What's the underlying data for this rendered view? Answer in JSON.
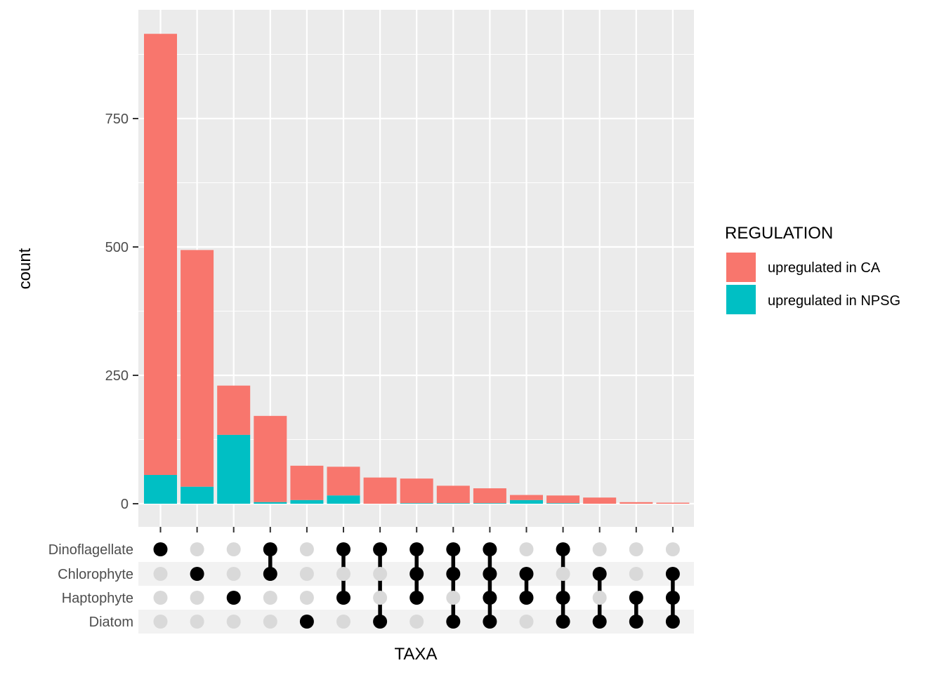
{
  "chart_data": {
    "type": "bar",
    "subtype": "upset-stacked",
    "xlabel": "TAXA",
    "ylabel": "count",
    "ylim": [
      0,
      915
    ],
    "yticks": [
      0,
      250,
      500,
      750
    ],
    "sets": [
      "Dinoflagellate",
      "Chlorophyte",
      "Haptophyte",
      "Diatom"
    ],
    "intersections": [
      [
        "Dinoflagellate"
      ],
      [
        "Chlorophyte"
      ],
      [
        "Haptophyte"
      ],
      [
        "Dinoflagellate",
        "Chlorophyte"
      ],
      [
        "Diatom"
      ],
      [
        "Dinoflagellate",
        "Haptophyte"
      ],
      [
        "Dinoflagellate",
        "Diatom"
      ],
      [
        "Dinoflagellate",
        "Chlorophyte",
        "Haptophyte"
      ],
      [
        "Dinoflagellate",
        "Chlorophyte",
        "Diatom"
      ],
      [
        "Dinoflagellate",
        "Chlorophyte",
        "Haptophyte",
        "Diatom"
      ],
      [
        "Chlorophyte",
        "Haptophyte"
      ],
      [
        "Dinoflagellate",
        "Haptophyte",
        "Diatom"
      ],
      [
        "Chlorophyte",
        "Diatom"
      ],
      [
        "Haptophyte",
        "Diatom"
      ],
      [
        "Chlorophyte",
        "Haptophyte",
        "Diatom"
      ]
    ],
    "series": [
      {
        "name": "upregulated in CA",
        "color": "#F8766D",
        "values": [
          859,
          461,
          96,
          168,
          67,
          56,
          51,
          48,
          34,
          29,
          10,
          15,
          12,
          3,
          2
        ]
      },
      {
        "name": "upregulated in NPSG",
        "color": "#00BFC4",
        "values": [
          56,
          33,
          134,
          3,
          7,
          16,
          0,
          1,
          1,
          1,
          7,
          1,
          0,
          0,
          0
        ]
      }
    ],
    "legend": {
      "title": "REGULATION",
      "position": "right"
    },
    "grid": true,
    "colors": {
      "panel": "#EBEBEB",
      "gridline": "#FFFFFF",
      "dot_active": "#000000",
      "dot_inactive": "#D9D9D9",
      "matrix_stripe": "#F2F2F2"
    }
  }
}
